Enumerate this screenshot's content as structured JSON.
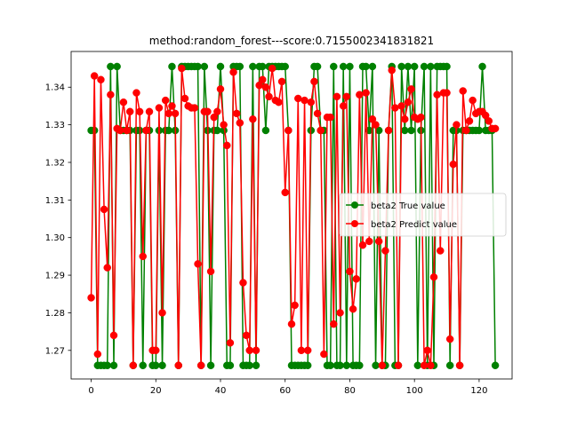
{
  "chart_data": {
    "type": "line",
    "title": "method:random_forest---score:0.7155002341831821",
    "xlabel": "",
    "ylabel": "",
    "xlim": [
      -6.2,
      130.2
    ],
    "ylim": [
      1.2624,
      1.3495
    ],
    "xticks": [
      0,
      20,
      40,
      60,
      80,
      100,
      120
    ],
    "yticks": [
      1.27,
      1.28,
      1.29,
      1.3,
      1.31,
      1.32,
      1.33,
      1.34
    ],
    "grid": false,
    "legend_position": "center-right",
    "x": [
      0,
      1,
      2,
      3,
      4,
      5,
      6,
      7,
      8,
      9,
      10,
      11,
      12,
      13,
      14,
      15,
      16,
      17,
      18,
      19,
      20,
      21,
      22,
      23,
      24,
      25,
      26,
      27,
      28,
      29,
      30,
      31,
      32,
      33,
      34,
      35,
      36,
      37,
      38,
      39,
      40,
      41,
      42,
      43,
      44,
      45,
      46,
      47,
      48,
      49,
      50,
      51,
      52,
      53,
      54,
      55,
      56,
      57,
      58,
      59,
      60,
      61,
      62,
      63,
      64,
      65,
      66,
      67,
      68,
      69,
      70,
      71,
      72,
      73,
      74,
      75,
      76,
      77,
      78,
      79,
      80,
      81,
      82,
      83,
      84,
      85,
      86,
      87,
      88,
      89,
      90,
      91,
      92,
      93,
      94,
      95,
      96,
      97,
      98,
      99,
      100,
      101,
      102,
      103,
      104,
      105,
      106,
      107,
      108,
      109,
      110,
      111,
      112,
      113,
      114,
      115,
      116,
      117,
      118,
      119,
      120,
      121,
      122,
      123,
      124,
      125
    ],
    "series": [
      {
        "name": "beta2 True value",
        "color": "#008000",
        "values": [
          1.3285,
          1.3285,
          1.266,
          1.266,
          1.266,
          1.266,
          1.3455,
          1.266,
          1.3455,
          1.3285,
          1.3285,
          1.3285,
          1.3285,
          1.266,
          1.3285,
          1.3285,
          1.266,
          1.3285,
          1.3285,
          1.266,
          1.266,
          1.3285,
          1.266,
          1.3285,
          1.3285,
          1.3455,
          1.3285,
          1.266,
          1.3455,
          1.3455,
          1.3455,
          1.3455,
          1.3455,
          1.3455,
          1.266,
          1.3455,
          1.3285,
          1.266,
          1.3285,
          1.3285,
          1.3455,
          1.3285,
          1.266,
          1.266,
          1.3455,
          1.3455,
          1.3455,
          1.266,
          1.266,
          1.266,
          1.3455,
          1.266,
          1.3455,
          1.3455,
          1.3285,
          1.3455,
          1.3455,
          1.3455,
          1.3455,
          1.3455,
          1.3455,
          1.3285,
          1.266,
          1.266,
          1.266,
          1.266,
          1.266,
          1.266,
          1.3285,
          1.3455,
          1.3455,
          1.3285,
          1.3285,
          1.266,
          1.266,
          1.3455,
          1.266,
          1.266,
          1.3455,
          1.266,
          1.3455,
          1.266,
          1.266,
          1.266,
          1.3455,
          1.3455,
          1.3285,
          1.3455,
          1.266,
          1.3285,
          1.266,
          1.266,
          1.3285,
          1.3455,
          1.266,
          1.266,
          1.3455,
          1.3285,
          1.3455,
          1.3285,
          1.3455,
          1.266,
          1.3285,
          1.3455,
          1.266,
          1.3455,
          1.266,
          1.3455,
          1.3455,
          1.3455,
          1.3455,
          1.266,
          1.3285,
          1.3285,
          1.266,
          1.3285,
          1.3285,
          1.3285,
          1.3285,
          1.3285,
          1.3285,
          1.3455,
          1.3285,
          1.3285,
          1.3285,
          1.266
        ]
      },
      {
        "name": "beta2 Predict value",
        "color": "#ff0000",
        "values": [
          1.284,
          1.343,
          1.269,
          1.342,
          1.3075,
          1.292,
          1.338,
          1.274,
          1.329,
          1.3285,
          1.336,
          1.3285,
          1.3335,
          1.266,
          1.3385,
          1.3335,
          1.295,
          1.3285,
          1.3335,
          1.27,
          1.27,
          1.3345,
          1.28,
          1.3365,
          1.333,
          1.335,
          1.333,
          1.266,
          1.345,
          1.337,
          1.335,
          1.3345,
          1.3345,
          1.293,
          1.266,
          1.3335,
          1.3335,
          1.291,
          1.332,
          1.3335,
          1.3395,
          1.33,
          1.3245,
          1.272,
          1.344,
          1.333,
          1.3305,
          1.288,
          1.274,
          1.27,
          1.3315,
          1.27,
          1.3405,
          1.342,
          1.34,
          1.3375,
          1.345,
          1.3365,
          1.336,
          1.3415,
          1.312,
          1.3285,
          1.277,
          1.282,
          1.337,
          1.27,
          1.3365,
          1.27,
          1.336,
          1.3415,
          1.333,
          1.3285,
          1.269,
          1.332,
          1.332,
          1.277,
          1.3375,
          1.28,
          1.335,
          1.3375,
          1.291,
          1.281,
          1.289,
          1.338,
          1.298,
          1.3385,
          1.299,
          1.3315,
          1.33,
          1.299,
          1.266,
          1.2965,
          1.3285,
          1.3445,
          1.3345,
          1.266,
          1.335,
          1.3315,
          1.336,
          1.3395,
          1.332,
          1.3315,
          1.332,
          1.266,
          1.27,
          1.266,
          1.2895,
          1.338,
          1.2965,
          1.3385,
          1.3385,
          1.273,
          1.3195,
          1.33,
          1.266,
          1.339,
          1.3285,
          1.331,
          1.3365,
          1.333,
          1.3335,
          1.3335,
          1.3325,
          1.331,
          1.329,
          1.329
        ]
      }
    ]
  }
}
